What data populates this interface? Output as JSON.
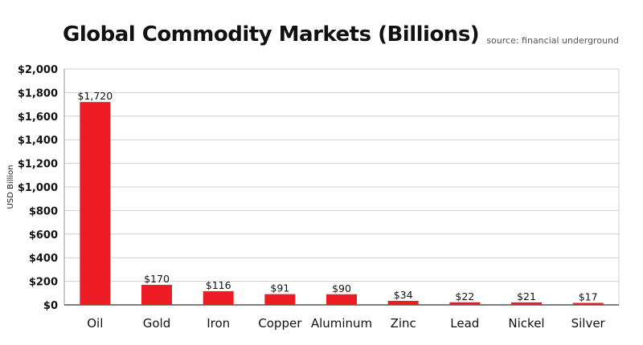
{
  "chart_data": {
    "type": "bar",
    "title": "Global Commodity Markets (Billions)",
    "source": "source: financial underground",
    "ylabel": "USD Billion",
    "xlabel": "",
    "categories": [
      "Oil",
      "Gold",
      "Iron",
      "Copper",
      "Aluminum",
      "Zinc",
      "Lead",
      "Nickel",
      "Silver"
    ],
    "values": [
      1720,
      170,
      116,
      91,
      90,
      34,
      22,
      21,
      17
    ],
    "data_labels": [
      "$1,720",
      "$170",
      "$116",
      "$91",
      "$90",
      "$34",
      "$22",
      "$21",
      "$17"
    ],
    "ylim": [
      0,
      2000
    ],
    "yticks": [
      0,
      200,
      400,
      600,
      800,
      1000,
      1200,
      1400,
      1600,
      1800,
      2000
    ],
    "ytick_labels": [
      "$0",
      "$200",
      "$400",
      "$600",
      "$800",
      "$1,000",
      "$1,200",
      "$1,400",
      "$1,600",
      "$1,800",
      "$2,000"
    ],
    "grid": true,
    "legend": "none",
    "bar_color": "#ed1c24",
    "grid_color": "#cfcfcf",
    "axis_color": "#999999"
  }
}
